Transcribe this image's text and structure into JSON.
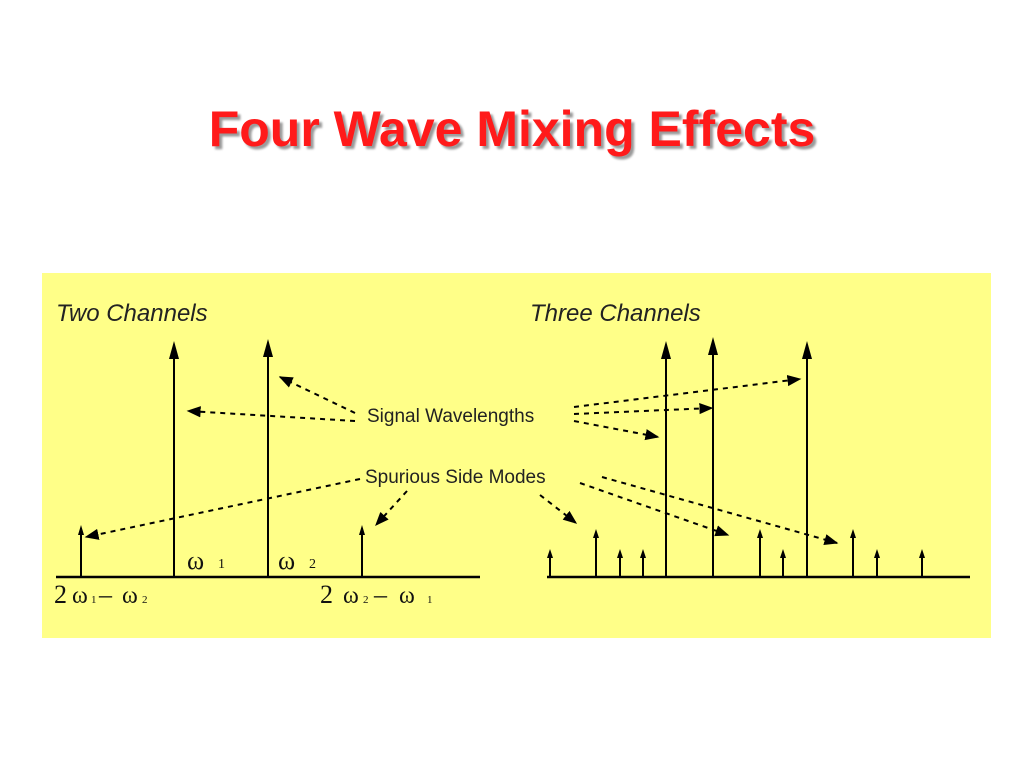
{
  "title": "Four Wave Mixing Effects",
  "figure": {
    "panel_color": "#ffff88",
    "left_group": {
      "heading": "Two Channels",
      "omega1": "ω",
      "omega1_sub": "1",
      "omega2": "ω",
      "omega2_sub": "2",
      "left_product": {
        "coef": "2",
        "w1": "ω",
        "w1_sub": "1",
        "minus": "–",
        "w2": "ω",
        "w2_sub": "2"
      },
      "right_product": {
        "coef": "2",
        "w1": "ω",
        "w1_sub": "2",
        "minus": "–",
        "w2": "ω",
        "w2_sub": "1"
      }
    },
    "right_group": {
      "heading": "Three Channels"
    },
    "callouts": {
      "signal": "Signal Wavelengths",
      "spurious": "Spurious Side Modes"
    }
  }
}
